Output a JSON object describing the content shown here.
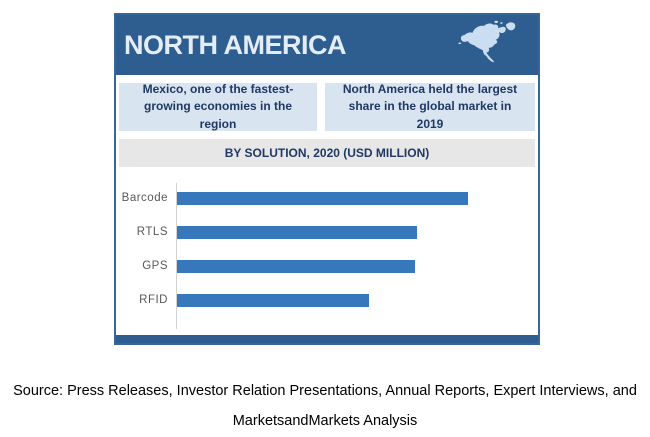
{
  "card": {
    "header": {
      "title": "NORTH AMERICA",
      "map_icon": "north-america-map-icon"
    },
    "highlights": [
      {
        "text": "Mexico, one of the fastest-growing economies in the region"
      },
      {
        "text": "North America held the largest share in the global market in 2019"
      }
    ],
    "section_title": "BY SOLUTION, 2020 (USD MILLION)"
  },
  "chart_data": {
    "type": "bar",
    "orientation": "horizontal",
    "title": "BY SOLUTION, 2020 (USD MILLION)",
    "categories": [
      "Barcode",
      "RTLS",
      "GPS",
      "RFID"
    ],
    "values": [
      100,
      82.5,
      81.8,
      66
    ],
    "values_note": "relative bar lengths as percent of longest bar; chart shows no numeric axis, gridlines, or data labels",
    "xlabel": "",
    "ylabel": "",
    "legend": "none",
    "grid": "off",
    "bar_color": "#3778BC"
  },
  "source": {
    "line1": "Source: Press Releases, Investor Relation Presentations, Annual Reports, Expert Interviews, and",
    "line2": "MarketsandMarkets Analysis"
  },
  "colors": {
    "header_bg": "#2E5E8F",
    "header_text": "#E4EDF7",
    "highlight_bg": "#D9E4F1",
    "highlight_text": "#1F3864",
    "section_bg": "#E8E7E7",
    "section_text": "#1F3864",
    "bar_fill": "#3778BC",
    "category_label": "#595959",
    "card_border": "#35689A",
    "bottom_strip": "#2E5E8F",
    "map_fill": "#CBDDF0"
  }
}
